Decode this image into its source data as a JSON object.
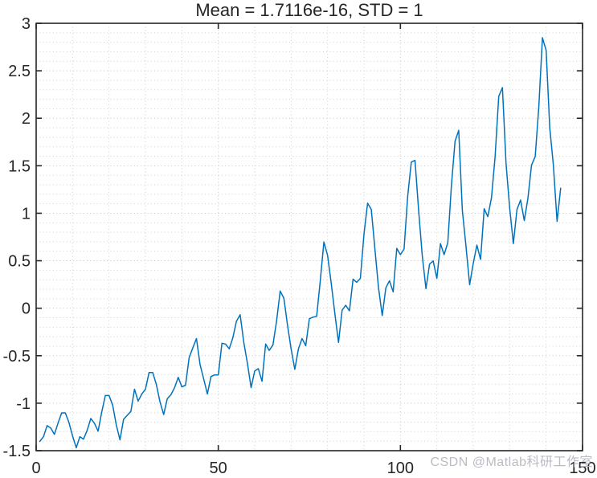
{
  "chart_data": {
    "type": "line",
    "title": "Mean = 1.7116e-16, STD = 1",
    "xlabel": "",
    "ylabel": "",
    "xlim": [
      0,
      150
    ],
    "ylim": [
      -1.5,
      3
    ],
    "xticks": [
      0,
      50,
      100,
      150
    ],
    "yticks": [
      -1.5,
      -1,
      -0.5,
      0,
      0.5,
      1,
      1.5,
      2,
      2.5,
      3
    ],
    "grid": "on",
    "minor_grid": {
      "x_step": 10,
      "y_step": 0.1
    },
    "legend": "none",
    "x_start": 1,
    "values": [
      -1.4029,
      -1.3529,
      -1.2361,
      -1.2612,
      -1.3279,
      -1.2111,
      -1.1027,
      -1.1027,
      -1.2028,
      -1.3445,
      -1.4696,
      -1.3529,
      -1.3779,
      -1.2862,
      -1.1611,
      -1.2111,
      -1.2945,
      -1.0944,
      -0.9194,
      -0.9194,
      -1.0194,
      -1.2278,
      -1.3862,
      -1.1695,
      -1.1278,
      -1.0861,
      -0.8527,
      -0.9777,
      -0.9027,
      -0.8527,
      -0.6777,
      -0.6777,
      -0.8027,
      -0.9861,
      -1.1194,
      -0.9527,
      -0.911,
      -0.836,
      -0.7277,
      -0.8277,
      -0.811,
      -0.5193,
      -0.4193,
      -0.3193,
      -0.5943,
      -0.7443,
      -0.9027,
      -0.7193,
      -0.7027,
      -0.7027,
      -0.3693,
      -0.3776,
      -0.4276,
      -0.3109,
      -0.1359,
      -0.0692,
      -0.3609,
      -0.5776,
      -0.836,
      -0.661,
      -0.636,
      -0.7694,
      -0.3776,
      -0.4443,
      -0.3859,
      -0.1359,
      0.1809,
      0.1059,
      -0.1775,
      -0.4276,
      -0.6443,
      -0.4276,
      -0.3193,
      -0.3943,
      -0.1109,
      -0.0942,
      -0.0859,
      0.2892,
      0.6977,
      0.556,
      0.2642,
      -0.0525,
      -0.3609,
      -0.0192,
      0.0309,
      -0.0275,
      0.3059,
      0.2726,
      0.3142,
      0.781,
      1.1061,
      1.0394,
      0.6227,
      0.2142,
      -0.0775,
      0.2142,
      0.2892,
      0.1725,
      0.631,
      0.5643,
      0.6227,
      1.1811,
      1.5395,
      1.5562,
      1.0311,
      0.556,
      0.2059,
      0.4643,
      0.4976,
      0.3142,
      0.681,
      0.5643,
      0.6893,
      1.2895,
      1.7563,
      1.873,
      1.0311,
      0.656,
      0.2476,
      0.4726,
      0.6643,
      0.5143,
      1.0478,
      0.9644,
      1.1645,
      1.5979,
      2.2314,
      2.3231,
      1.5229,
      1.0561,
      0.681,
      1.0394,
      1.1394,
      0.9228,
      1.1561,
      1.5062,
      1.5979,
      2.123,
      2.8482,
      2.7149,
      1.898,
      1.5062,
      0.9144,
      1.2645
    ]
  },
  "watermark": {
    "text": "CSDN @Matlab科研工作室"
  },
  "colors": {
    "line": "#0072BD",
    "axis": "#262626",
    "grid_major": "#c3c3c3",
    "grid_minor": "#d0d0d0",
    "tick_label": "#262626",
    "watermark": "#b6b9c0",
    "background": "#ffffff"
  }
}
